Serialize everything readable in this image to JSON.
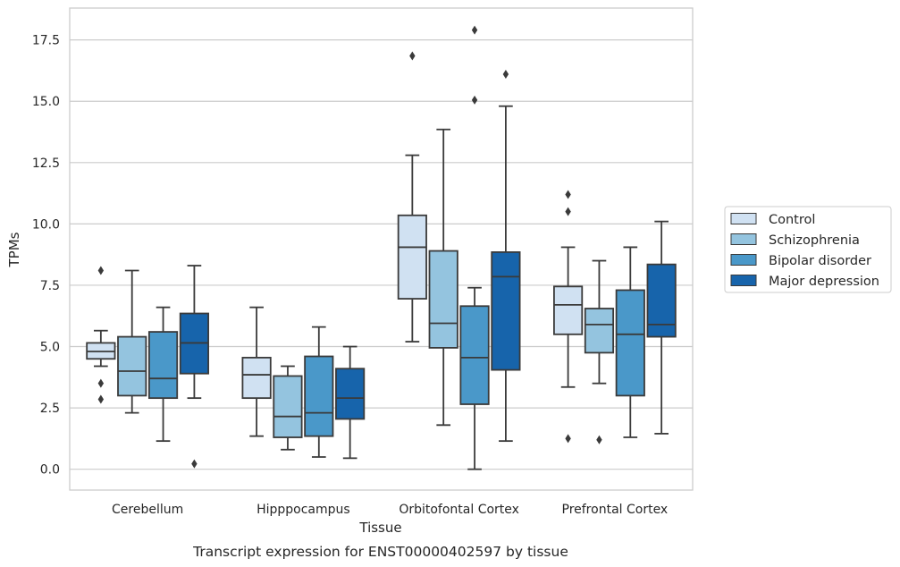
{
  "caption": "Transcript expression for ENST00000402597 by tissue",
  "chart_data": {
    "type": "boxplot",
    "xlabel": "Tissue",
    "ylabel": "TPMs",
    "ylim": [
      -0.85,
      18.8
    ],
    "yticks": [
      "0.0",
      "2.5",
      "5.0",
      "7.5",
      "10.0",
      "12.5",
      "15.0",
      "17.5"
    ],
    "ytick_values": [
      0,
      2.5,
      5,
      7.5,
      10,
      12.5,
      15,
      17.5
    ],
    "grid": "horizontal",
    "legend_position": "right",
    "categories": [
      "Cerebellum",
      "Hipppocampus",
      "Orbitofontal Cortex",
      "Prefrontal Cortex"
    ],
    "series": [
      {
        "name": "Control",
        "color": "#d0e1f2",
        "boxes": [
          {
            "whislo": 4.2,
            "q1": 4.5,
            "med": 4.8,
            "q3": 5.15,
            "whishi": 5.65,
            "fliers": [
              8.1,
              3.5,
              2.85
            ]
          },
          {
            "whislo": 1.35,
            "q1": 2.9,
            "med": 3.85,
            "q3": 4.55,
            "whishi": 6.6,
            "fliers": []
          },
          {
            "whislo": 5.2,
            "q1": 6.95,
            "med": 9.05,
            "q3": 10.35,
            "whishi": 12.8,
            "fliers": [
              16.85
            ]
          },
          {
            "whislo": 3.35,
            "q1": 5.5,
            "med": 6.7,
            "q3": 7.45,
            "whishi": 9.05,
            "fliers": [
              11.2,
              10.5,
              1.25
            ]
          }
        ]
      },
      {
        "name": "Schizophrenia",
        "color": "#94c4df",
        "boxes": [
          {
            "whislo": 2.3,
            "q1": 3.0,
            "med": 4.0,
            "q3": 5.4,
            "whishi": 8.1,
            "fliers": []
          },
          {
            "whislo": 0.8,
            "q1": 1.3,
            "med": 2.15,
            "q3": 3.8,
            "whishi": 4.2,
            "fliers": []
          },
          {
            "whislo": 1.8,
            "q1": 4.95,
            "med": 5.95,
            "q3": 8.9,
            "whishi": 13.85,
            "fliers": []
          },
          {
            "whislo": 3.5,
            "q1": 4.75,
            "med": 5.9,
            "q3": 6.55,
            "whishi": 8.5,
            "fliers": [
              1.2
            ]
          }
        ]
      },
      {
        "name": "Bipolar disorder",
        "color": "#4a98c9",
        "boxes": [
          {
            "whislo": 1.15,
            "q1": 2.9,
            "med": 3.7,
            "q3": 5.6,
            "whishi": 6.6,
            "fliers": []
          },
          {
            "whislo": 0.5,
            "q1": 1.35,
            "med": 2.3,
            "q3": 4.6,
            "whishi": 5.8,
            "fliers": []
          },
          {
            "whislo": 0.0,
            "q1": 2.65,
            "med": 4.55,
            "q3": 6.65,
            "whishi": 7.4,
            "fliers": [
              15.05,
              17.9
            ]
          },
          {
            "whislo": 1.3,
            "q1": 3.0,
            "med": 5.5,
            "q3": 7.3,
            "whishi": 9.05,
            "fliers": []
          }
        ]
      },
      {
        "name": "Major depression",
        "color": "#1764ab",
        "boxes": [
          {
            "whislo": 2.9,
            "q1": 3.9,
            "med": 5.15,
            "q3": 6.35,
            "whishi": 8.3,
            "fliers": [
              0.22
            ]
          },
          {
            "whislo": 0.45,
            "q1": 2.05,
            "med": 2.9,
            "q3": 4.1,
            "whishi": 5.0,
            "fliers": []
          },
          {
            "whislo": 1.15,
            "q1": 4.05,
            "med": 7.85,
            "q3": 8.85,
            "whishi": 14.8,
            "fliers": [
              16.1
            ]
          },
          {
            "whislo": 1.45,
            "q1": 5.4,
            "med": 5.9,
            "q3": 8.35,
            "whishi": 10.1,
            "fliers": []
          }
        ]
      }
    ]
  }
}
